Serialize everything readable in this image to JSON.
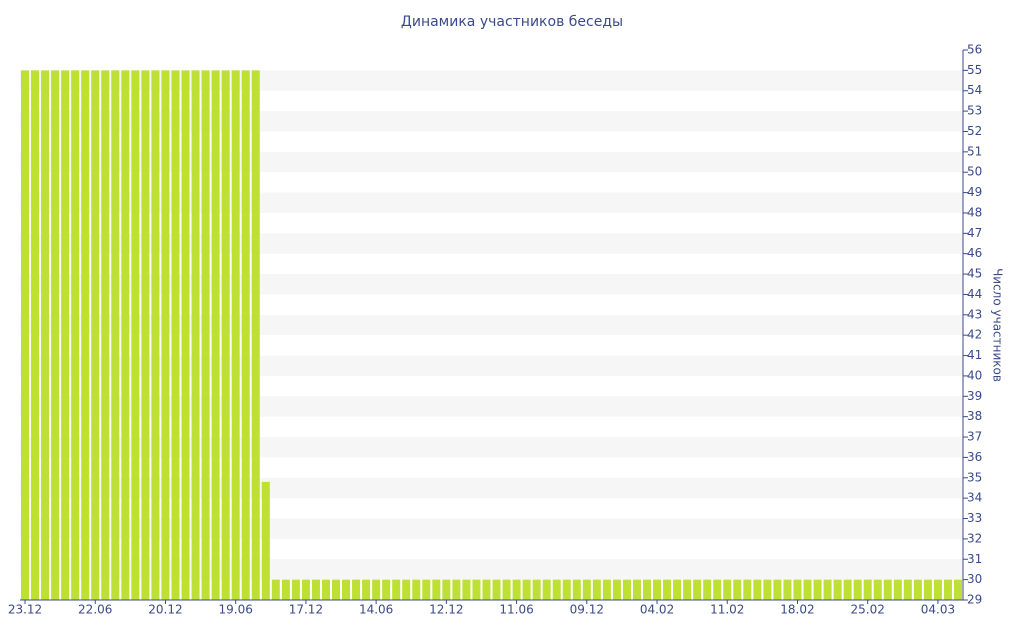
{
  "chart_data": {
    "type": "bar",
    "title": "Динамика участников беседы",
    "y_axis_label": "Число участников",
    "color": "#bde032",
    "grid": true,
    "categories": [
      "23.12",
      null,
      null,
      null,
      null,
      null,
      null,
      "22.06",
      null,
      null,
      null,
      null,
      null,
      null,
      "20.12",
      null,
      null,
      null,
      null,
      null,
      null,
      "19.06",
      null,
      null,
      null,
      null,
      null,
      null,
      "17.12",
      null,
      null,
      null,
      null,
      null,
      null,
      "14.06",
      null,
      null,
      null,
      null,
      null,
      null,
      "12.12",
      null,
      null,
      null,
      null,
      null,
      null,
      "11.06",
      null,
      null,
      null,
      null,
      null,
      null,
      "09.12",
      null,
      null,
      null,
      null,
      null,
      null,
      "04.02",
      null,
      null,
      null,
      null,
      null,
      null,
      "11.02",
      null,
      null,
      null,
      null,
      null,
      null,
      "18.02",
      null,
      null,
      null,
      null,
      null,
      null,
      "25.02",
      null,
      null,
      null,
      null,
      null,
      null,
      "04.03",
      null,
      null
    ],
    "values": [
      55,
      55,
      55,
      55,
      55,
      55,
      55,
      55,
      55,
      55,
      55,
      55,
      55,
      55,
      55,
      55,
      55,
      55,
      55,
      55,
      55,
      55,
      55,
      55,
      34.8,
      30,
      30,
      30,
      30,
      30,
      30,
      30,
      30,
      30,
      30,
      30,
      30,
      30,
      30,
      30,
      30,
      30,
      30,
      30,
      30,
      30,
      30,
      30,
      30,
      30,
      30,
      30,
      30,
      30,
      30,
      30,
      30,
      30,
      30,
      30,
      30,
      30,
      30,
      30,
      30,
      30,
      30,
      30,
      30,
      30,
      30,
      30,
      30,
      30,
      30,
      30,
      30,
      30,
      30,
      30,
      30,
      30,
      30,
      30,
      30,
      30,
      30,
      30,
      30,
      30,
      30,
      30,
      30,
      30
    ],
    "ylim": [
      29,
      56
    ],
    "yticks": [
      29,
      30,
      31,
      32,
      33,
      34,
      35,
      36,
      37,
      38,
      39,
      40,
      41,
      42,
      43,
      44,
      45,
      46,
      47,
      48,
      49,
      50,
      51,
      52,
      53,
      54,
      55,
      56
    ]
  }
}
